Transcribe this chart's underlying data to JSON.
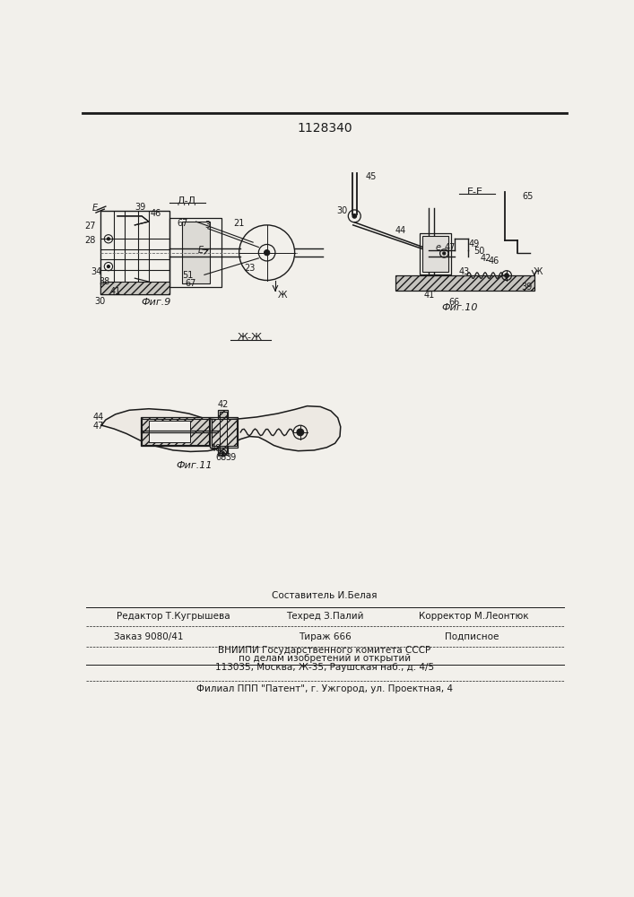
{
  "patent_number": "1128340",
  "background_color": "#f2f0eb",
  "line_color": "#1a1a1a",
  "fig9_label": "Фиг.9",
  "fig9_section": "Д-Д",
  "fig10_label": "Фиг.10",
  "fig10_section": "Е-Е",
  "fig11_label": "Фиг.11",
  "fig11_section": "Ж-Ж",
  "footer_line1": "Составитель И.Белая",
  "footer_line2_left": "Редактор Т.Кугрышева",
  "footer_line2_center": "Техред З.Палий",
  "footer_line2_right": "Корректор М.Леонтюк",
  "footer_line3_left": "Заказ 9080/41",
  "footer_line3_center": "Тираж 666",
  "footer_line3_right": "Подписное",
  "footer_line4": "ВНИИПИ Государственного комитета СССР",
  "footer_line5": "по делам изобретений и открытий",
  "footer_line6": "113035, Москва, Ж-35, Раушская наб., д. 4/5",
  "footer_line7": "Филиал ППП \"Патент\", г. Ужгород, ул. Проектная, 4"
}
